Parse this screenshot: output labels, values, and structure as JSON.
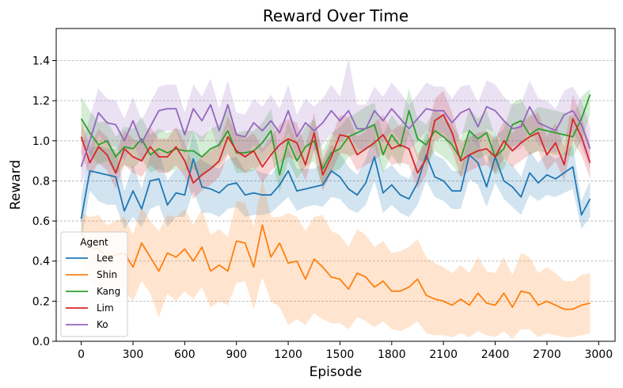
{
  "chart_data": {
    "type": "line",
    "title": "Reward Over Time",
    "xlabel": "Episode",
    "ylabel": "Reward",
    "xlim": [
      -145,
      3095
    ],
    "ylim": [
      0.0,
      1.56
    ],
    "xticks": [
      0,
      300,
      600,
      900,
      1200,
      1500,
      1800,
      2100,
      2400,
      2700,
      3000
    ],
    "yticks": [
      0.0,
      0.2,
      0.4,
      0.6,
      0.8,
      1.0,
      1.2,
      1.4
    ],
    "ytick_labels": [
      "0.0",
      "0.2",
      "0.4",
      "0.6",
      "0.8",
      "1.0",
      "1.2",
      "1.4"
    ],
    "grid": {
      "y": true,
      "x": false,
      "style": "dashed"
    },
    "legend": {
      "title": "Agent",
      "placement": "lower-left"
    },
    "x": [
      0,
      50,
      100,
      150,
      200,
      250,
      300,
      350,
      400,
      450,
      500,
      550,
      600,
      650,
      700,
      750,
      800,
      850,
      900,
      950,
      1000,
      1050,
      1100,
      1150,
      1200,
      1250,
      1300,
      1350,
      1400,
      1450,
      1500,
      1550,
      1600,
      1650,
      1700,
      1750,
      1800,
      1850,
      1900,
      1950,
      2000,
      2050,
      2100,
      2150,
      2200,
      2250,
      2300,
      2350,
      2400,
      2450,
      2500,
      2550,
      2600,
      2650,
      2700,
      2750,
      2800,
      2850,
      2900,
      2950
    ],
    "series": [
      {
        "name": "Lee",
        "color": "#1f77b4",
        "values": [
          0.61,
          0.85,
          0.84,
          0.83,
          0.82,
          0.65,
          0.75,
          0.66,
          0.8,
          0.81,
          0.68,
          0.74,
          0.73,
          0.91,
          0.77,
          0.76,
          0.74,
          0.78,
          0.79,
          0.73,
          0.74,
          0.73,
          0.73,
          0.78,
          0.85,
          0.75,
          0.76,
          0.77,
          0.78,
          0.85,
          0.82,
          0.76,
          0.73,
          0.79,
          0.92,
          0.74,
          0.78,
          0.73,
          0.71,
          0.79,
          0.93,
          0.82,
          0.8,
          0.75,
          0.75,
          0.93,
          0.89,
          0.77,
          0.92,
          0.8,
          0.77,
          0.72,
          0.84,
          0.79,
          0.83,
          0.81,
          0.84,
          0.87,
          0.63,
          0.71
        ],
        "lower": [
          0.5,
          0.75,
          0.7,
          0.68,
          0.68,
          0.56,
          0.62,
          0.57,
          0.66,
          0.68,
          0.57,
          0.62,
          0.62,
          0.75,
          0.64,
          0.64,
          0.62,
          0.66,
          0.67,
          0.62,
          0.63,
          0.63,
          0.64,
          0.68,
          0.72,
          0.65,
          0.67,
          0.68,
          0.67,
          0.72,
          0.71,
          0.66,
          0.64,
          0.68,
          0.8,
          0.64,
          0.68,
          0.64,
          0.62,
          0.68,
          0.8,
          0.72,
          0.7,
          0.66,
          0.66,
          0.81,
          0.78,
          0.67,
          0.79,
          0.71,
          0.67,
          0.63,
          0.73,
          0.7,
          0.73,
          0.72,
          0.74,
          0.76,
          0.56,
          0.62
        ],
        "upper": [
          0.72,
          0.96,
          0.98,
          0.96,
          0.96,
          0.75,
          0.88,
          0.76,
          0.93,
          0.95,
          0.8,
          0.86,
          0.85,
          1.05,
          0.9,
          0.88,
          0.86,
          0.91,
          0.92,
          0.85,
          0.86,
          0.84,
          0.83,
          0.89,
          0.97,
          0.86,
          0.86,
          0.86,
          0.89,
          0.98,
          0.94,
          0.87,
          0.83,
          0.91,
          1.04,
          0.85,
          0.88,
          0.83,
          0.81,
          0.9,
          1.05,
          0.93,
          0.91,
          0.85,
          0.85,
          1.05,
          1.0,
          0.88,
          1.05,
          0.9,
          0.88,
          0.82,
          0.95,
          0.89,
          0.94,
          0.91,
          0.94,
          0.98,
          0.7,
          0.8
        ]
      },
      {
        "name": "Shin",
        "color": "#ff7f0e",
        "values": [
          0.54,
          0.47,
          0.46,
          0.42,
          0.43,
          0.44,
          0.37,
          0.49,
          0.42,
          0.35,
          0.44,
          0.42,
          0.46,
          0.4,
          0.47,
          0.35,
          0.38,
          0.35,
          0.5,
          0.49,
          0.37,
          0.58,
          0.42,
          0.49,
          0.39,
          0.4,
          0.31,
          0.41,
          0.37,
          0.32,
          0.31,
          0.26,
          0.34,
          0.32,
          0.27,
          0.3,
          0.25,
          0.25,
          0.27,
          0.31,
          0.23,
          0.21,
          0.2,
          0.18,
          0.21,
          0.18,
          0.24,
          0.19,
          0.18,
          0.24,
          0.17,
          0.25,
          0.24,
          0.18,
          0.2,
          0.18,
          0.16,
          0.16,
          0.18,
          0.19
        ],
        "lower": [
          0.42,
          0.31,
          0.27,
          0.26,
          0.26,
          0.25,
          0.2,
          0.3,
          0.24,
          0.12,
          0.24,
          0.2,
          0.25,
          0.21,
          0.27,
          0.17,
          0.2,
          0.18,
          0.29,
          0.3,
          0.16,
          0.32,
          0.2,
          0.17,
          0.08,
          0.11,
          0.08,
          0.14,
          0.11,
          0.09,
          0.09,
          0.06,
          0.12,
          0.1,
          0.07,
          0.1,
          0.06,
          0.05,
          0.07,
          0.1,
          0.04,
          0.03,
          0.03,
          0.02,
          0.04,
          0.02,
          0.05,
          0.03,
          0.02,
          0.05,
          0.01,
          0.06,
          0.06,
          0.02,
          0.04,
          0.03,
          0.02,
          0.02,
          0.03,
          0.04
        ],
        "upper": [
          0.64,
          0.62,
          0.63,
          0.58,
          0.6,
          0.62,
          0.53,
          0.67,
          0.6,
          0.55,
          0.63,
          0.62,
          0.66,
          0.58,
          0.66,
          0.53,
          0.56,
          0.52,
          0.7,
          0.69,
          0.57,
          0.81,
          0.62,
          0.62,
          0.64,
          0.62,
          0.55,
          0.62,
          0.63,
          0.55,
          0.53,
          0.47,
          0.56,
          0.53,
          0.47,
          0.5,
          0.44,
          0.45,
          0.47,
          0.51,
          0.42,
          0.39,
          0.37,
          0.34,
          0.38,
          0.34,
          0.42,
          0.35,
          0.34,
          0.42,
          0.33,
          0.44,
          0.42,
          0.34,
          0.37,
          0.34,
          0.3,
          0.3,
          0.33,
          0.34
        ]
      },
      {
        "name": "Kang",
        "color": "#2ca02c",
        "values": [
          1.11,
          1.04,
          0.98,
          1.0,
          0.92,
          0.97,
          0.96,
          1.01,
          0.93,
          0.96,
          0.94,
          0.96,
          0.95,
          0.95,
          0.92,
          0.96,
          0.98,
          1.05,
          0.94,
          0.94,
          0.95,
          0.99,
          1.05,
          0.83,
          1.0,
          0.9,
          0.97,
          1.0,
          0.86,
          0.94,
          0.96,
          1.02,
          1.04,
          1.06,
          1.08,
          0.93,
          1.03,
          0.97,
          1.15,
          1.01,
          0.98,
          1.05,
          1.02,
          0.98,
          0.91,
          1.05,
          1.01,
          1.04,
          0.92,
          0.96,
          1.08,
          1.1,
          1.03,
          1.06,
          1.05,
          1.04,
          1.03,
          1.02,
          1.11,
          1.23
        ],
        "lower": [
          1.0,
          0.93,
          0.88,
          0.9,
          0.83,
          0.88,
          0.86,
          0.91,
          0.84,
          0.86,
          0.84,
          0.86,
          0.85,
          0.86,
          0.82,
          0.86,
          0.88,
          0.94,
          0.84,
          0.84,
          0.85,
          0.89,
          0.94,
          0.74,
          0.9,
          0.81,
          0.87,
          0.9,
          0.77,
          0.84,
          0.86,
          0.92,
          0.94,
          0.96,
          0.97,
          0.84,
          0.93,
          0.87,
          1.03,
          0.91,
          0.88,
          0.95,
          0.92,
          0.88,
          0.82,
          0.94,
          0.91,
          0.93,
          0.83,
          0.86,
          0.97,
          0.99,
          0.93,
          0.95,
          0.94,
          0.93,
          0.93,
          0.92,
          1.0,
          1.13
        ],
        "upper": [
          1.22,
          1.15,
          1.09,
          1.1,
          1.02,
          1.07,
          1.06,
          1.12,
          1.03,
          1.06,
          1.04,
          1.06,
          1.05,
          1.05,
          1.02,
          1.06,
          1.08,
          1.16,
          1.04,
          1.05,
          1.05,
          1.09,
          1.16,
          0.93,
          1.1,
          1.0,
          1.07,
          1.11,
          0.95,
          1.04,
          1.07,
          1.12,
          1.14,
          1.17,
          1.19,
          1.03,
          1.13,
          1.07,
          1.26,
          1.11,
          1.08,
          1.16,
          1.12,
          1.08,
          1.01,
          1.16,
          1.11,
          1.15,
          1.02,
          1.06,
          1.19,
          1.21,
          1.13,
          1.17,
          1.16,
          1.15,
          1.14,
          1.12,
          1.22,
          1.26
        ]
      },
      {
        "name": "Lim",
        "color": "#d62728",
        "values": [
          1.02,
          0.89,
          0.97,
          0.93,
          0.84,
          0.96,
          0.92,
          0.9,
          0.97,
          0.92,
          0.92,
          0.97,
          0.9,
          0.79,
          0.83,
          0.86,
          0.9,
          1.02,
          0.95,
          0.92,
          0.95,
          0.87,
          0.93,
          0.98,
          1.01,
          0.99,
          0.88,
          1.04,
          0.83,
          0.92,
          1.03,
          1.02,
          0.93,
          0.96,
          0.99,
          1.03,
          0.96,
          0.98,
          0.96,
          0.84,
          0.91,
          1.1,
          1.13,
          1.04,
          0.9,
          0.93,
          0.95,
          0.96,
          0.92,
          1.0,
          0.95,
          0.99,
          1.02,
          1.04,
          0.93,
          0.99,
          0.88,
          1.11,
          1.02,
          0.89
        ],
        "lower": [
          0.94,
          0.82,
          0.89,
          0.85,
          0.76,
          0.88,
          0.84,
          0.82,
          0.88,
          0.84,
          0.84,
          0.88,
          0.82,
          0.71,
          0.75,
          0.78,
          0.82,
          0.93,
          0.87,
          0.84,
          0.87,
          0.79,
          0.85,
          0.89,
          0.92,
          0.9,
          0.8,
          0.95,
          0.75,
          0.84,
          0.94,
          0.93,
          0.85,
          0.88,
          0.9,
          0.94,
          0.88,
          0.89,
          0.88,
          0.76,
          0.83,
          1.0,
          1.02,
          0.95,
          0.82,
          0.85,
          0.87,
          0.88,
          0.84,
          0.91,
          0.87,
          0.9,
          0.93,
          0.95,
          0.85,
          0.9,
          0.8,
          1.0,
          0.93,
          0.81
        ],
        "upper": [
          1.1,
          0.97,
          1.06,
          1.02,
          0.93,
          1.05,
          1.01,
          0.99,
          1.07,
          1.01,
          1.01,
          1.07,
          0.99,
          0.88,
          0.92,
          0.95,
          0.99,
          1.12,
          1.04,
          1.01,
          1.04,
          0.96,
          1.02,
          1.08,
          1.11,
          1.09,
          0.97,
          1.14,
          0.91,
          1.01,
          1.13,
          1.12,
          1.02,
          1.05,
          1.09,
          1.13,
          1.05,
          1.08,
          1.05,
          0.93,
          1.0,
          1.21,
          1.25,
          1.14,
          0.99,
          1.02,
          1.04,
          1.05,
          1.01,
          1.1,
          1.04,
          1.09,
          1.12,
          1.14,
          1.02,
          1.09,
          0.97,
          1.23,
          1.12,
          0.98
        ]
      },
      {
        "name": "Ko",
        "color": "#9467bd",
        "values": [
          0.87,
          1.0,
          1.14,
          1.09,
          1.08,
          1.0,
          1.1,
          0.99,
          1.07,
          1.15,
          1.16,
          1.16,
          1.03,
          1.16,
          1.1,
          1.18,
          1.05,
          1.18,
          1.03,
          1.02,
          1.09,
          1.05,
          1.1,
          1.04,
          1.15,
          1.02,
          1.09,
          1.05,
          1.09,
          1.15,
          1.1,
          1.15,
          1.06,
          1.06,
          1.15,
          1.1,
          1.16,
          1.11,
          1.06,
          1.11,
          1.16,
          1.15,
          1.15,
          1.09,
          1.14,
          1.16,
          1.07,
          1.17,
          1.15,
          1.1,
          1.06,
          1.07,
          1.17,
          1.09,
          1.07,
          1.05,
          1.13,
          1.15,
          1.08,
          0.96
        ],
        "lower": [
          0.78,
          0.9,
          1.03,
          0.98,
          0.97,
          0.9,
          0.99,
          0.89,
          0.96,
          1.04,
          1.05,
          1.05,
          0.93,
          1.05,
          0.99,
          1.07,
          0.95,
          1.07,
          0.93,
          0.92,
          0.98,
          0.94,
          0.99,
          0.94,
          1.04,
          0.92,
          0.98,
          0.95,
          0.98,
          1.04,
          0.99,
          1.04,
          0.96,
          0.95,
          1.04,
          0.99,
          1.05,
          1.0,
          0.95,
          1.0,
          1.05,
          1.04,
          1.04,
          0.98,
          1.03,
          1.05,
          0.96,
          1.06,
          1.04,
          0.99,
          0.95,
          0.96,
          1.06,
          0.98,
          0.96,
          0.94,
          1.02,
          1.04,
          0.97,
          0.86
        ],
        "upper": [
          0.96,
          1.12,
          1.26,
          1.21,
          1.2,
          1.11,
          1.22,
          1.1,
          1.19,
          1.27,
          1.28,
          1.28,
          1.14,
          1.28,
          1.22,
          1.31,
          1.16,
          1.3,
          1.14,
          1.13,
          1.21,
          1.17,
          1.23,
          1.16,
          1.28,
          1.13,
          1.21,
          1.17,
          1.21,
          1.28,
          1.22,
          1.41,
          1.18,
          1.18,
          1.27,
          1.22,
          1.29,
          1.24,
          1.18,
          1.23,
          1.29,
          1.27,
          1.27,
          1.21,
          1.27,
          1.28,
          1.19,
          1.3,
          1.28,
          1.22,
          1.18,
          1.19,
          1.3,
          1.21,
          1.2,
          1.16,
          1.25,
          1.27,
          1.2,
          1.07
        ]
      }
    ]
  }
}
